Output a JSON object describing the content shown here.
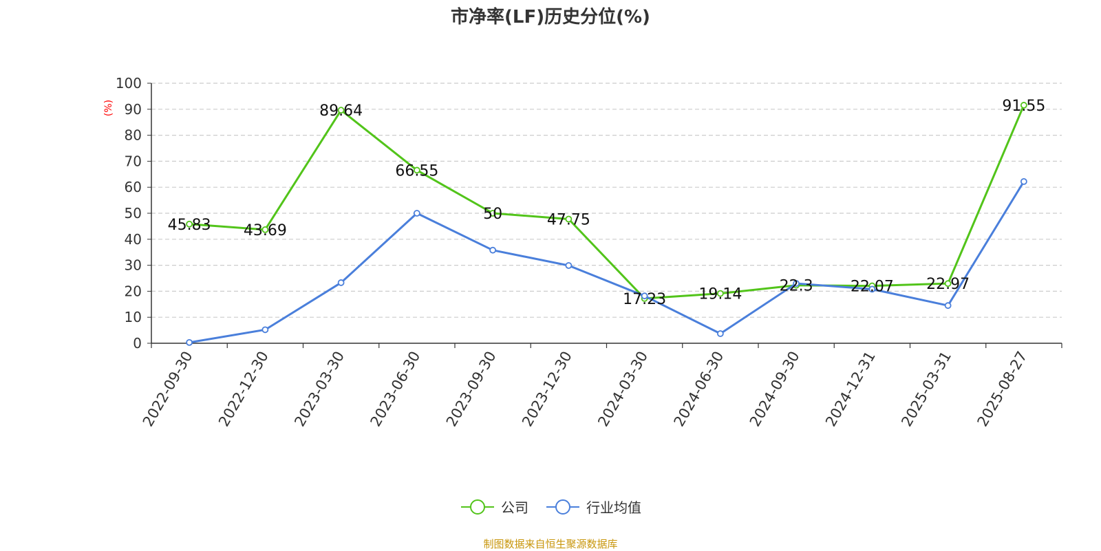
{
  "chart_data": {
    "type": "line",
    "title": "市净率(LF)历史分位(%)",
    "ylabel": "(%)",
    "xlabel": "",
    "ylim": [
      0,
      100
    ],
    "yticks": [
      0,
      10,
      20,
      30,
      40,
      50,
      60,
      70,
      80,
      90,
      100
    ],
    "grid": true,
    "legend_position": "bottom-center",
    "categories": [
      "2022-09-30",
      "2022-12-30",
      "2023-03-30",
      "2023-06-30",
      "2023-09-30",
      "2023-12-30",
      "2024-03-30",
      "2024-06-30",
      "2024-09-30",
      "2024-12-31",
      "2025-03-31",
      "2025-08-27"
    ],
    "series": [
      {
        "name": "公司",
        "color": "#52c41a",
        "values": [
          45.83,
          43.69,
          89.64,
          66.55,
          50,
          47.75,
          17.23,
          19.14,
          22.3,
          22.07,
          22.97,
          91.55
        ],
        "labels": [
          "45.83",
          "43.69",
          "89.64",
          "66.55",
          "50",
          "47.75",
          "17.23",
          "19.14",
          "22.3",
          "22.07",
          "22.97",
          "91.55"
        ]
      },
      {
        "name": "行业均值",
        "color": "#4a7fdb",
        "values": [
          0.3,
          5.2,
          23.3,
          50.0,
          35.8,
          29.9,
          18.2,
          3.7,
          23.0,
          20.8,
          14.5,
          62.2
        ]
      }
    ]
  },
  "footer": {
    "source": "制图数据来自恒生聚源数据库"
  }
}
